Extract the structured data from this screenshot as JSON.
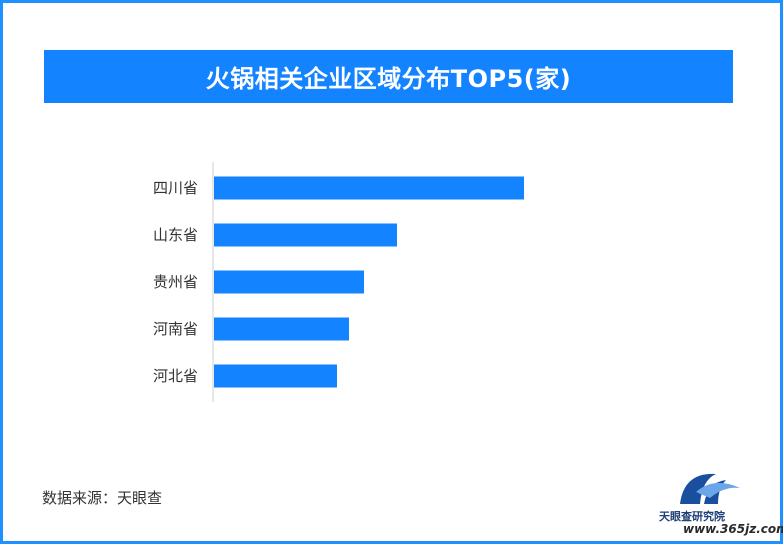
{
  "chart_data": {
    "type": "bar",
    "orientation": "horizontal",
    "title": "火锅相关企业区域分布TOP5(家)",
    "categories": [
      "四川省",
      "山东省",
      "贵州省",
      "河南省",
      "河北省"
    ],
    "values": [
      3100,
      1830,
      1500,
      1350,
      1230
    ],
    "xlim": [
      0,
      3500
    ],
    "grid": false,
    "bar_color": "#1383ff"
  },
  "footer": {
    "source": "数据来源：天眼查"
  },
  "logo": {
    "name": "天眼查研究院",
    "icon": "tianyancha-logo-icon"
  },
  "watermark": "www.365jz.com",
  "colors": {
    "frame_border": "#1e90ff",
    "title_bar": "#1383ff",
    "bars": "#1383ff"
  }
}
